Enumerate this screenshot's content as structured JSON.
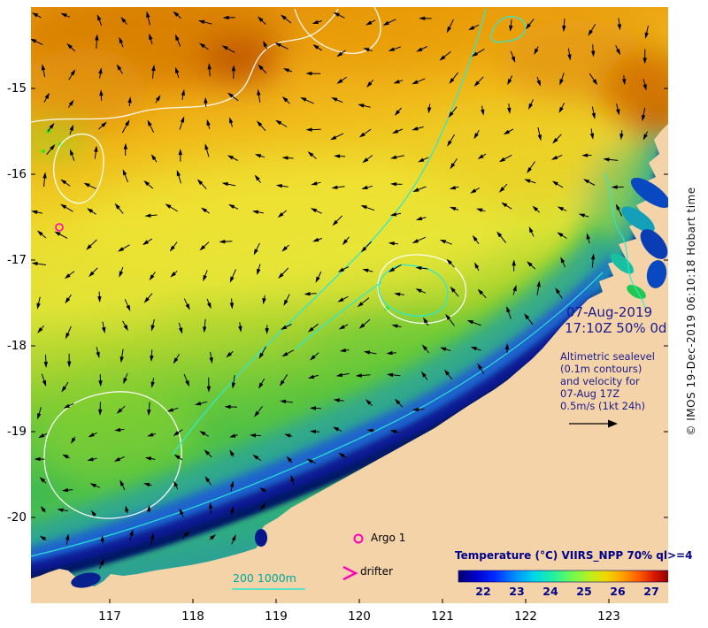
{
  "axes": {
    "lat_ticks": [
      "-15",
      "-16",
      "-17",
      "-18",
      "-19",
      "-20"
    ],
    "lon_ticks": [
      "117",
      "118",
      "119",
      "120",
      "121",
      "122",
      "123"
    ]
  },
  "annotations": {
    "date": "07-Aug-2019",
    "status": "17:10Z 50% 0d",
    "info_lines": [
      "Altimetric sealevel",
      "(0.1m contours)",
      "and velocity for",
      "07-Aug 17Z",
      "0.5m/s (1kt 24h)"
    ]
  },
  "legend": {
    "bathymetry": "200 1000m",
    "argo": "Argo 1",
    "drifter": "drifter"
  },
  "colorbar": {
    "title": "Temperature (°C) VIIRS_NPP 70% ql>=4",
    "ticks": [
      "22",
      "23",
      "24",
      "25",
      "26",
      "27"
    ]
  },
  "credit": "© IMOS 19-Dec-2019 06:10:18 Hobart time",
  "colors": {
    "land": "#f3d3a7",
    "navy_text": "#1b1b8f",
    "contour_white": "#ffffff",
    "contour_cyan": "#2ee8d0",
    "bathy_label": "#00a8a0",
    "marker": "#ff00bb",
    "arrow": "#000000"
  }
}
